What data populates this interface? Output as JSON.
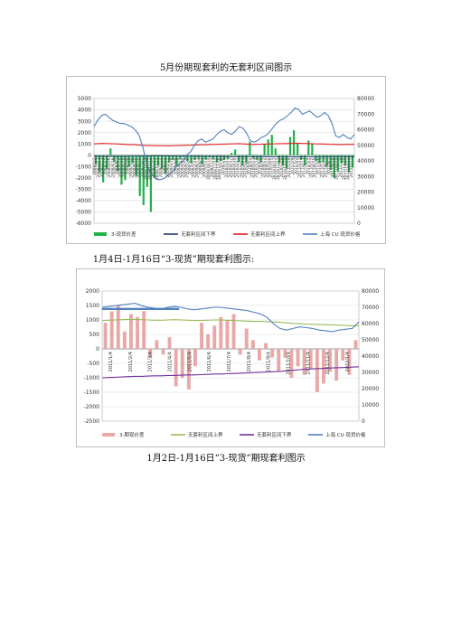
{
  "captions": {
    "top": "5月份期现套利的无套利区间图示",
    "middle": "1月4日-1月16日“3-现货”期现套利图示:",
    "bottom": "1月2日-1月16日“3-现货”期现套利图示"
  },
  "chart_data": [
    {
      "type": "bar",
      "grid": true,
      "legend_position": "bottom",
      "left_axis": {
        "range": [
          -6000,
          5000
        ],
        "ticks": [
          5000,
          4000,
          3000,
          2000,
          1000,
          0,
          -1000,
          -2000,
          -3000,
          -4000,
          -5000,
          -6000
        ]
      },
      "right_axis": {
        "range": [
          0,
          80000
        ],
        "ticks": [
          80000,
          70000,
          60000,
          50000,
          40000,
          30000,
          20000,
          10000,
          0
        ]
      },
      "x_tick_labels": [
        "2008/1/2",
        "2008/1/23",
        "2008/2/13",
        "2008/3/5",
        "2008/3/26",
        "2008/4/16",
        "2008/5/7",
        "2008/5/28",
        "2008/6/18",
        "2008/7/9",
        "2008/7/30",
        "2008/8/20",
        "2008/9/10",
        "2008/10/1",
        "2008/10/22",
        "2008/11/12",
        "2008/12/3",
        "2008/12/24",
        "2009/1/14",
        "2009/2/4",
        "2009/2/25",
        "2009/3/18",
        "2009/4/8",
        "2009/4/29",
        "2009/5/20",
        "2009/6/10",
        "2009/7/1",
        "2009/7/22",
        "2009/8/12",
        "2009/9/2",
        "2009/9/23",
        "2009/10/14",
        "2009/11/4",
        "2009/11/25",
        "2009/12/16",
        "2010/1/6",
        "2010/1/27",
        "2010/2/17",
        "2010/3/10",
        "2010/3/31",
        "2010/4/21",
        "2010/5/12",
        "2010/6/2",
        "2010/6/23",
        "2010/7/14",
        "2010/8/4",
        "2010/8/25",
        "2010/9/15",
        "2010/10/6",
        "2010/10/27",
        "2010/11/17",
        "2010/12/8",
        "2010/12/29",
        "2011/1/19",
        "2011/2/9",
        "2011/3/2",
        "2011/3/23",
        "2011/4/13",
        "2011/5/4",
        "2011/5/25",
        "2011/6/15",
        "2011/7/6",
        "2011/7/27",
        "2011/8/17",
        "2011/9/7",
        "2011/9/28",
        "2011/10/19",
        "2011/11/9",
        "2011/11/30",
        "2011/12/21",
        "2012/1/11"
      ],
      "series": [
        {
          "name": "3-现货价差",
          "axis": "left",
          "color": "#23b14d",
          "kind": "bar",
          "values": [
            -800,
            -1500,
            -2400,
            -1200,
            600,
            -600,
            -1400,
            -2600,
            -2200,
            -1000,
            -700,
            -1800,
            -3600,
            -4400,
            -2800,
            -5000,
            -2000,
            -900,
            -1200,
            -1600,
            -600,
            -400,
            -900,
            -300,
            -200,
            -500,
            -700,
            -400,
            -300,
            -800,
            -400,
            -200,
            -300,
            -600,
            -500,
            -400,
            -300,
            200,
            500,
            -600,
            -900,
            -700,
            1200,
            -300,
            -400,
            -600,
            1000,
            1400,
            1800,
            600,
            -700,
            -900,
            -1200,
            1600,
            2200,
            1100,
            -400,
            -900,
            1300,
            1000,
            -500,
            -700,
            -600,
            -1000,
            -1300,
            -2000,
            -1400,
            -700,
            -900,
            -1500,
            -1100
          ]
        },
        {
          "name": "无套利区间下界",
          "axis": "left",
          "color": "#1f3e6e",
          "kind": "line",
          "values": [
            -100,
            -110,
            -120,
            -115,
            -110,
            -110,
            -115,
            -120,
            -115,
            -110,
            -105,
            -100,
            -95,
            -90,
            -85,
            -85,
            -80,
            -80,
            -80,
            -85,
            -85,
            -90,
            -90,
            -95,
            -100,
            -100,
            -105,
            -110,
            -110,
            -115,
            -115,
            -115,
            -120,
            -120,
            -125,
            -125,
            -130,
            -130,
            -130,
            -135,
            -130,
            -125,
            -125,
            -125,
            -130,
            -130,
            -130,
            -135,
            -140,
            -140,
            -140,
            -140,
            -145,
            -145,
            -150,
            -150,
            -145,
            -145,
            -140,
            -140,
            -140,
            -140,
            -135,
            -135,
            -130,
            -130,
            -125,
            -125,
            -130,
            -130,
            -130
          ]
        },
        {
          "name": "无套利区间上界",
          "axis": "left",
          "color": "#e02020",
          "kind": "line",
          "values": [
            1000,
            1020,
            1040,
            1030,
            1020,
            1010,
            1000,
            980,
            960,
            940,
            930,
            920,
            900,
            880,
            860,
            860,
            850,
            840,
            840,
            830,
            830,
            840,
            850,
            860,
            870,
            880,
            890,
            900,
            910,
            920,
            930,
            940,
            950,
            960,
            970,
            980,
            990,
            1000,
            1010,
            1020,
            1000,
            980,
            960,
            950,
            960,
            970,
            980,
            990,
            1000,
            1010,
            1020,
            1020,
            1030,
            1040,
            1050,
            1050,
            1040,
            1030,
            1020,
            1010,
            1000,
            990,
            980,
            970,
            960,
            950,
            940,
            940,
            950,
            950,
            960
          ]
        },
        {
          "name": "上海 CU 现货价格",
          "axis": "right",
          "color": "#4f81bd",
          "kind": "line",
          "values": [
            62000,
            66000,
            69000,
            70000,
            68000,
            66000,
            65000,
            64000,
            64000,
            63000,
            62000,
            60000,
            57000,
            50000,
            40000,
            33000,
            30000,
            28000,
            28000,
            29000,
            31000,
            33000,
            36000,
            38000,
            40000,
            44000,
            46000,
            50000,
            53000,
            54000,
            52000,
            53000,
            54000,
            57000,
            59000,
            60000,
            58000,
            57000,
            59000,
            62000,
            61000,
            58000,
            53000,
            52000,
            53000,
            55000,
            56000,
            58000,
            61000,
            64000,
            66000,
            67000,
            69000,
            71000,
            74000,
            73000,
            70000,
            71000,
            72000,
            70000,
            68000,
            69000,
            71000,
            69000,
            64000,
            56000,
            55000,
            57000,
            55000,
            54000,
            57000
          ]
        }
      ]
    },
    {
      "type": "bar",
      "grid": true,
      "legend_position": "bottom",
      "left_axis": {
        "range": [
          -2500,
          2000
        ],
        "ticks": [
          2000,
          1500,
          1000,
          500,
          0,
          -500,
          -1000,
          -1500,
          -2000,
          -2500
        ]
      },
      "right_axis": {
        "range": [
          0,
          80000
        ],
        "ticks": [
          80000,
          70000,
          60000,
          50000,
          40000,
          30000,
          20000,
          10000,
          0
        ]
      },
      "x_tick_labels": [
        "2011/1/4",
        "2011/2/4",
        "2011/3/4",
        "2011/4/4",
        "2011/5/4",
        "2011/6/4",
        "2011/7/4",
        "2011/8/4",
        "2011/9/4",
        "2011/10/4",
        "2011/11/4",
        "2011/12/4",
        "2012/1/4"
      ],
      "series": [
        {
          "name": "3-期现价差",
          "axis": "left",
          "color": "#e8a8a8",
          "kind": "bar",
          "values": [
            900,
            1300,
            1500,
            600,
            1200,
            1100,
            1300,
            -300,
            300,
            -200,
            400,
            -1300,
            -1000,
            -1400,
            -600,
            900,
            500,
            800,
            1100,
            1000,
            1200,
            -200,
            700,
            300,
            -400,
            200,
            -300,
            -800,
            -300,
            -1000,
            -600,
            -900,
            -700,
            -1500,
            -1200,
            -800,
            -1100,
            -400,
            -900,
            300
          ]
        },
        {
          "name": "无套利区间上界",
          "axis": "left",
          "color": "#9bbb59",
          "kind": "line",
          "values": [
            980,
            990,
            1000,
            1010,
            1020,
            1020,
            1010,
            1000,
            990,
            990,
            1000,
            1010,
            1000,
            990,
            980,
            980,
            990,
            1000,
            1000,
            990,
            980,
            970,
            960,
            950,
            950,
            940,
            930,
            920,
            900,
            880,
            870,
            860,
            850,
            840,
            830,
            830,
            820,
            810,
            800,
            800
          ]
        },
        {
          "name": "无套利区间下界",
          "axis": "left",
          "color": "#7030a0",
          "kind": "line",
          "values": [
            -1000,
            -990,
            -980,
            -970,
            -960,
            -950,
            -950,
            -940,
            -930,
            -930,
            -920,
            -920,
            -910,
            -900,
            -900,
            -890,
            -880,
            -870,
            -870,
            -860,
            -850,
            -840,
            -830,
            -820,
            -810,
            -800,
            -790,
            -780,
            -760,
            -740,
            -720,
            -700,
            -690,
            -680,
            -670,
            -660,
            -650,
            -640,
            -630,
            -620
          ]
        },
        {
          "name": "上海 CU 现货价格",
          "axis": "right",
          "color": "#4f81bd",
          "kind": "line",
          "values": [
            70000,
            70500,
            71000,
            71500,
            72000,
            72500,
            71000,
            70000,
            69500,
            69000,
            70000,
            70500,
            70000,
            69000,
            68500,
            69000,
            69500,
            70000,
            70000,
            69500,
            69000,
            68500,
            68000,
            67000,
            66000,
            64000,
            60000,
            57000,
            56000,
            57000,
            58000,
            57500,
            57000,
            56000,
            55500,
            55000,
            56000,
            56500,
            57000,
            61000
          ]
        },
        {
          "name": "上海 CU 现货价格 (highlight)",
          "axis": "right",
          "color": "#4f81bd",
          "kind": "line-bold",
          "values": [
            69000,
            69000,
            69000,
            69000,
            69000,
            69000,
            69000,
            69000,
            69000,
            69000,
            69000,
            69000,
            69000
          ]
        }
      ],
      "legend": [
        "3-期现价差",
        "无套利区间上界",
        "无套利区间下界",
        "上海 CU 现货价格"
      ]
    }
  ]
}
